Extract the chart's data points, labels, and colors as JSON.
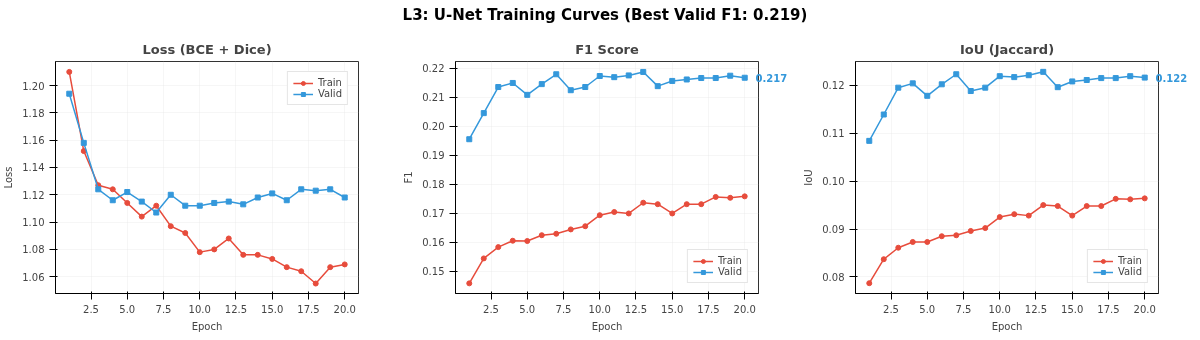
{
  "chart_data": [
    {
      "type": "other",
      "title": "L3: U-Net Training Curves (Best Valid F1: 0.219)"
    },
    {
      "type": "line",
      "title": "Loss (BCE + Dice)",
      "xlabel": "Epoch",
      "ylabel": "Loss",
      "x": [
        1,
        2,
        3,
        4,
        5,
        6,
        7,
        8,
        9,
        10,
        11,
        12,
        13,
        14,
        15,
        16,
        17,
        18,
        19,
        20
      ],
      "xlim": [
        0.05,
        20.95
      ],
      "xticks": [
        {
          "value": 2.5,
          "label": "2.5"
        },
        {
          "value": 5,
          "label": "5.0"
        },
        {
          "value": 7.5,
          "label": "7.5"
        },
        {
          "value": 10,
          "label": "10.0"
        },
        {
          "value": 12.5,
          "label": "12.5"
        },
        {
          "value": 15,
          "label": "15.0"
        },
        {
          "value": 17.5,
          "label": "17.5"
        },
        {
          "value": 20,
          "label": "20.0"
        }
      ],
      "ylim": [
        1.0477,
        1.2176
      ],
      "yticks": [
        {
          "value": 1.06,
          "label": "1.06"
        },
        {
          "value": 1.08,
          "label": "1.08"
        },
        {
          "value": 1.1,
          "label": "1.10"
        },
        {
          "value": 1.12,
          "label": "1.12"
        },
        {
          "value": 1.14,
          "label": "1.14"
        },
        {
          "value": 1.16,
          "label": "1.16"
        },
        {
          "value": 1.18,
          "label": "1.18"
        },
        {
          "value": 1.2,
          "label": "1.20"
        }
      ],
      "grid": true,
      "legend": "top right",
      "line_style": "solid",
      "series": [
        {
          "name": "Train",
          "color": "#e74c3c",
          "marker": "circle",
          "values": [
            1.21,
            1.152,
            1.127,
            1.124,
            1.114,
            1.104,
            1.112,
            1.097,
            1.092,
            1.078,
            1.08,
            1.088,
            1.076,
            1.076,
            1.073,
            1.067,
            1.064,
            1.055,
            1.067,
            1.069
          ]
        },
        {
          "name": "Valid",
          "color": "#3498db",
          "marker": "square",
          "values": [
            1.194,
            1.158,
            1.124,
            1.116,
            1.122,
            1.115,
            1.107,
            1.12,
            1.112,
            1.112,
            1.114,
            1.115,
            1.113,
            1.118,
            1.121,
            1.116,
            1.124,
            1.123,
            1.124,
            1.118
          ]
        }
      ]
    },
    {
      "type": "line",
      "title": "F1 Score",
      "xlabel": "Epoch",
      "ylabel": "F1",
      "x": [
        1,
        2,
        3,
        4,
        5,
        6,
        7,
        8,
        9,
        10,
        11,
        12,
        13,
        14,
        15,
        16,
        17,
        18,
        19,
        20
      ],
      "xlim": [
        0.05,
        20.95
      ],
      "xticks": [
        {
          "value": 2.5,
          "label": "2.5"
        },
        {
          "value": 5,
          "label": "5.0"
        },
        {
          "value": 7.5,
          "label": "7.5"
        },
        {
          "value": 10,
          "label": "10.0"
        },
        {
          "value": 12.5,
          "label": "12.5"
        },
        {
          "value": 15,
          "label": "15.0"
        },
        {
          "value": 17.5,
          "label": "17.5"
        },
        {
          "value": 20,
          "label": "20.0"
        }
      ],
      "ylim": [
        0.1423,
        0.2223
      ],
      "yticks": [
        0.15,
        {
          "value": 0.16,
          "label": "0.16"
        },
        0.17,
        {
          "value": 0.18,
          "label": "0.18"
        },
        0.19,
        {
          "value": 0.2,
          "label": "0.20"
        },
        0.21,
        0.22
      ],
      "grid": true,
      "legend": "bottom right",
      "line_style": "solid",
      "annotations": [
        {
          "text": "0.217",
          "x": 20,
          "y": 0.2167
        }
      ],
      "series": [
        {
          "name": "Train",
          "color": "#e74c3c",
          "marker": "circle",
          "values": [
            0.1458,
            0.1544,
            0.1583,
            0.1605,
            0.1604,
            0.1624,
            0.1629,
            0.1644,
            0.1655,
            0.1693,
            0.1704,
            0.1699,
            0.1736,
            0.1731,
            0.1699,
            0.1731,
            0.1731,
            0.1756,
            0.1753,
            0.1758
          ]
        },
        {
          "name": "Valid",
          "color": "#3498db",
          "marker": "square",
          "values": [
            0.1955,
            0.2045,
            0.2135,
            0.2149,
            0.2108,
            0.2145,
            0.2179,
            0.2124,
            0.2135,
            0.2173,
            0.2169,
            0.2175,
            0.2187,
            0.2138,
            0.2156,
            0.2161,
            0.2166,
            0.2166,
            0.2174,
            0.2167
          ]
        }
      ]
    },
    {
      "type": "line",
      "title": "IoU (Jaccard)",
      "xlabel": "Epoch",
      "ylabel": "IoU",
      "x": [
        1,
        2,
        3,
        4,
        5,
        6,
        7,
        8,
        9,
        10,
        11,
        12,
        13,
        14,
        15,
        16,
        17,
        18,
        19,
        20
      ],
      "xlim": [
        0.05,
        20.95
      ],
      "xticks": [
        {
          "value": 2.5,
          "label": "2.5"
        },
        {
          "value": 5,
          "label": "5.0"
        },
        {
          "value": 7.5,
          "label": "7.5"
        },
        {
          "value": 10,
          "label": "10.0"
        },
        {
          "value": 12.5,
          "label": "12.5"
        },
        {
          "value": 15,
          "label": "15.0"
        },
        {
          "value": 17.5,
          "label": "17.5"
        },
        {
          "value": 20,
          "label": "20.0"
        }
      ],
      "ylim": [
        0.07655,
        0.12496
      ],
      "yticks": [
        {
          "value": 0.08,
          "label": "0.08"
        },
        {
          "value": 0.09,
          "label": "0.09"
        },
        {
          "value": 0.1,
          "label": "0.10"
        },
        {
          "value": 0.11,
          "label": "0.11"
        },
        {
          "value": 0.12,
          "label": "0.12"
        }
      ],
      "grid": true,
      "legend": "bottom right",
      "line_style": "solid",
      "annotations": [
        {
          "text": "0.122",
          "x": 20,
          "y": 0.1216
        }
      ],
      "series": [
        {
          "name": "Train",
          "color": "#e74c3c",
          "marker": "circle",
          "values": [
            0.0787,
            0.0837,
            0.0861,
            0.0873,
            0.0873,
            0.0885,
            0.0887,
            0.0896,
            0.0902,
            0.0925,
            0.0931,
            0.0928,
            0.095,
            0.0948,
            0.0928,
            0.0948,
            0.0948,
            0.0963,
            0.0962,
            0.0964
          ]
        },
        {
          "name": "Valid",
          "color": "#3498db",
          "marker": "square",
          "values": [
            0.1084,
            0.1139,
            0.1195,
            0.1204,
            0.1178,
            0.1202,
            0.1223,
            0.1188,
            0.1195,
            0.1219,
            0.1217,
            0.1221,
            0.1228,
            0.1196,
            0.1208,
            0.1211,
            0.1215,
            0.1215,
            0.1219,
            0.1216
          ]
        }
      ]
    }
  ]
}
